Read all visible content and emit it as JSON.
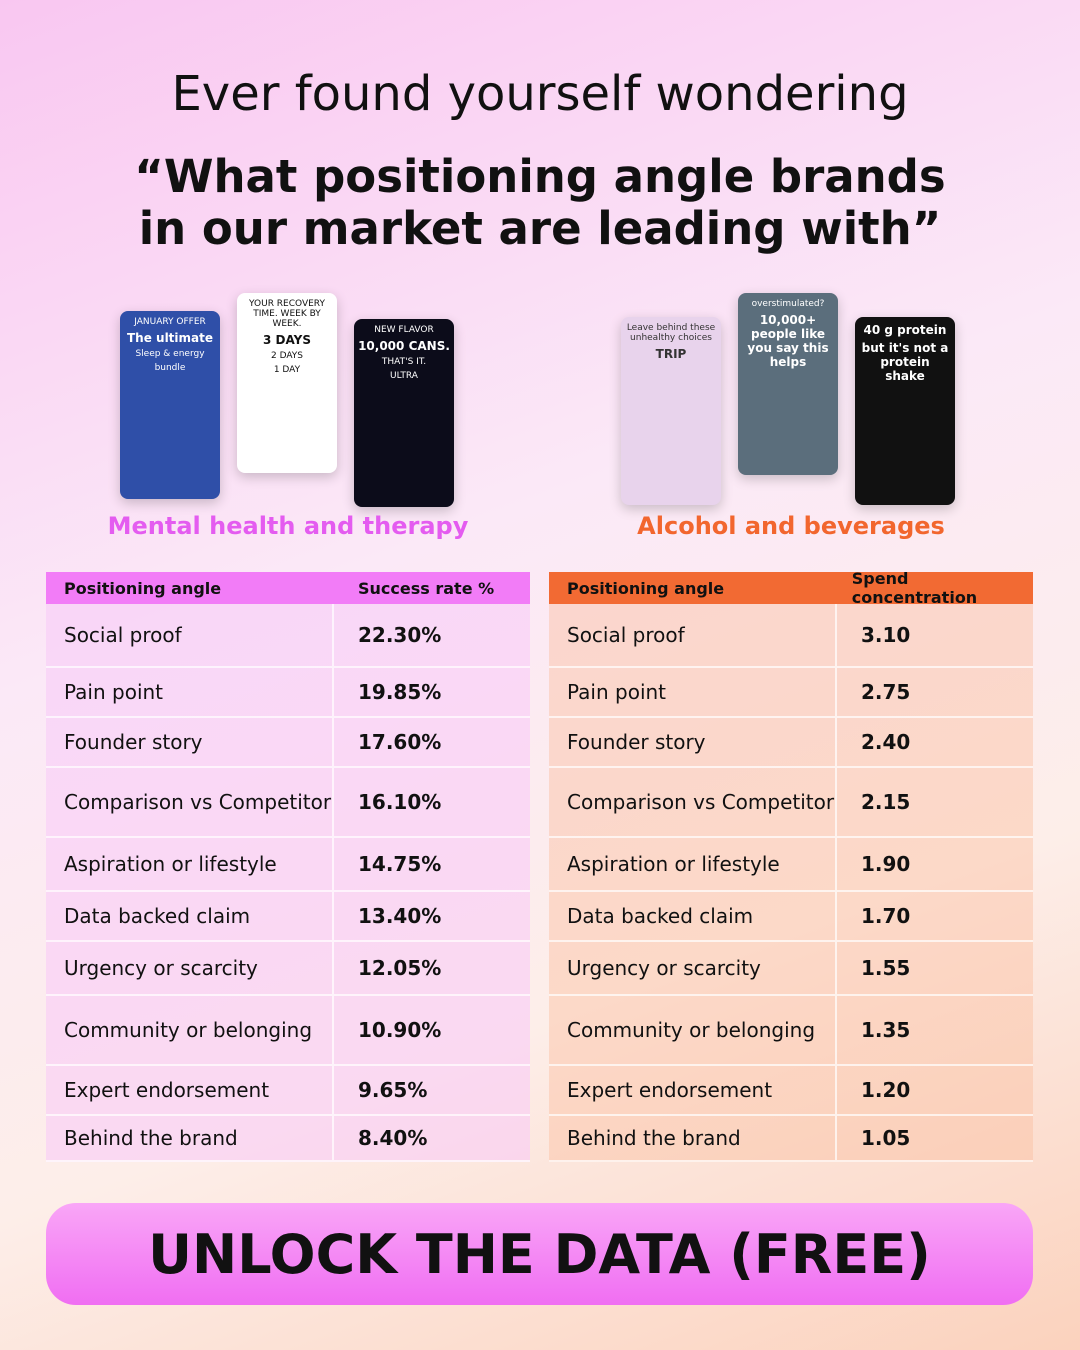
{
  "header": {
    "line1": "Ever found yourself wondering",
    "line2": "“What positioning angle brands",
    "line3": "in our market are leading with”"
  },
  "sections": [
    {
      "label": "Mental health and therapy",
      "ads": [
        [
          "JANUARY OFFER",
          "The ultimate",
          "Sleep & energy",
          "bundle"
        ],
        [
          "YOUR RECOVERY TIME. WEEK BY WEEK.",
          "3 DAYS",
          "2 DAYS",
          "1 DAY"
        ],
        [
          "NEW FLAVOR",
          "10,000 CANS.",
          "THAT'S IT.",
          "ULTRA"
        ]
      ],
      "table": {
        "columns": [
          "Positioning angle",
          "Success rate %"
        ],
        "rows": [
          [
            "Social proof",
            "22.30%"
          ],
          [
            "Pain point",
            "19.85%"
          ],
          [
            "Founder story",
            "17.60%"
          ],
          [
            "Comparison vs Competitor",
            "16.10%"
          ],
          [
            "Aspiration or lifestyle",
            "14.75%"
          ],
          [
            "Data backed claim",
            "13.40%"
          ],
          [
            "Urgency or scarcity",
            "12.05%"
          ],
          [
            "Community or belonging",
            "10.90%"
          ],
          [
            "Expert endorsement",
            "9.65%"
          ],
          [
            "Behind the brand",
            "8.40%"
          ]
        ]
      }
    },
    {
      "label": "Alcohol and beverages",
      "ads": [
        [
          "Leave behind these unhealthy choices",
          "TRIP"
        ],
        [
          "overstimulated?",
          "10,000+ people like you say this helps"
        ],
        [
          "40 g protein",
          "but it's not a protein shake"
        ]
      ],
      "table": {
        "columns": [
          "Positioning angle",
          "Spend concentration"
        ],
        "rows": [
          [
            "Social proof",
            "3.10"
          ],
          [
            "Pain point",
            "2.75"
          ],
          [
            "Founder story",
            "2.40"
          ],
          [
            "Comparison vs Competitor",
            "2.15"
          ],
          [
            "Aspiration or lifestyle",
            "1.90"
          ],
          [
            "Data backed claim",
            "1.70"
          ],
          [
            "Urgency or scarcity",
            "1.55"
          ],
          [
            "Community or belonging",
            "1.35"
          ],
          [
            "Expert endorsement",
            "1.20"
          ],
          [
            "Behind the brand",
            "1.05"
          ]
        ]
      }
    }
  ],
  "button": {
    "label": "UNLOCK THE DATA (FREE)"
  }
}
